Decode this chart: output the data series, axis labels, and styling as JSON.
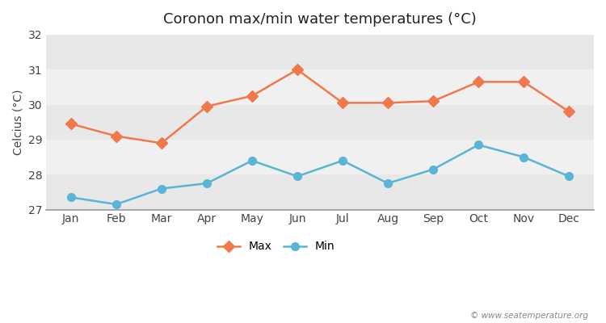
{
  "title": "Coronon max/min water temperatures (°C)",
  "ylabel": "Celcius (°C)",
  "months": [
    "Jan",
    "Feb",
    "Mar",
    "Apr",
    "May",
    "Jun",
    "Jul",
    "Aug",
    "Sep",
    "Oct",
    "Nov",
    "Dec"
  ],
  "max_temps": [
    29.45,
    29.1,
    28.9,
    29.95,
    30.25,
    31.0,
    30.05,
    30.05,
    30.1,
    30.65,
    30.65,
    29.8
  ],
  "min_temps": [
    27.35,
    27.15,
    27.6,
    27.75,
    28.4,
    27.95,
    28.4,
    27.75,
    28.15,
    28.85,
    28.5,
    27.95
  ],
  "max_color": "#f0784a",
  "min_color": "#5ab4d6",
  "marker_max": "D",
  "marker_min": "o",
  "ylim": [
    27,
    32
  ],
  "yticks": [
    27,
    28,
    29,
    30,
    31,
    32
  ],
  "band_colors": [
    "#e8e8e8",
    "#f0f0f0"
  ],
  "figure_bg": "#ffffff",
  "watermark": "© www.seatemperature.org",
  "legend_labels": [
    "Max",
    "Min"
  ]
}
